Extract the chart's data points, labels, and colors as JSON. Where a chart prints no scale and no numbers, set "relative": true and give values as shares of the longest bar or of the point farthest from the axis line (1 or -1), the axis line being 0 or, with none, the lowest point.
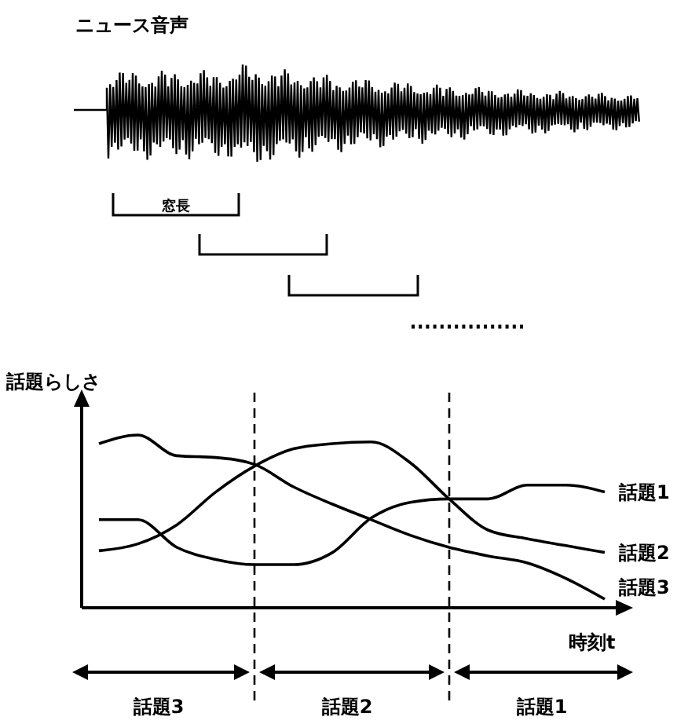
{
  "chart_data": {
    "type": "line",
    "title": "ニュース音声",
    "ylabel": "話題らしさ",
    "xlabel": "時刻t",
    "relative": true,
    "annotations": [
      "窓長",
      "話題3",
      "話題2",
      "話題1"
    ],
    "categories": [
      null,
      null,
      null,
      null,
      null,
      null,
      null,
      null,
      null,
      null,
      null,
      null,
      null,
      null
    ],
    "series": [
      {
        "name": "話題1",
        "color": "#000000",
        "values": [
          0.51,
          0.51,
          0.35,
          0.28,
          0.25,
          0.25,
          0.32,
          0.52,
          0.61,
          0.63,
          0.63,
          0.71,
          0.71,
          0.67
        ]
      },
      {
        "name": "話題2",
        "color": "#000000",
        "values": [
          0.33,
          0.37,
          0.48,
          0.67,
          0.82,
          0.92,
          0.95,
          0.96,
          0.84,
          0.63,
          0.45,
          0.4,
          0.36,
          0.32
        ]
      },
      {
        "name": "話題3",
        "color": "#000000",
        "values": [
          0.95,
          1,
          0.88,
          0.87,
          0.83,
          0.7,
          0.6,
          0.51,
          0.42,
          0.35,
          0.3,
          0.26,
          0.17,
          0.05
        ]
      }
    ]
  }
}
